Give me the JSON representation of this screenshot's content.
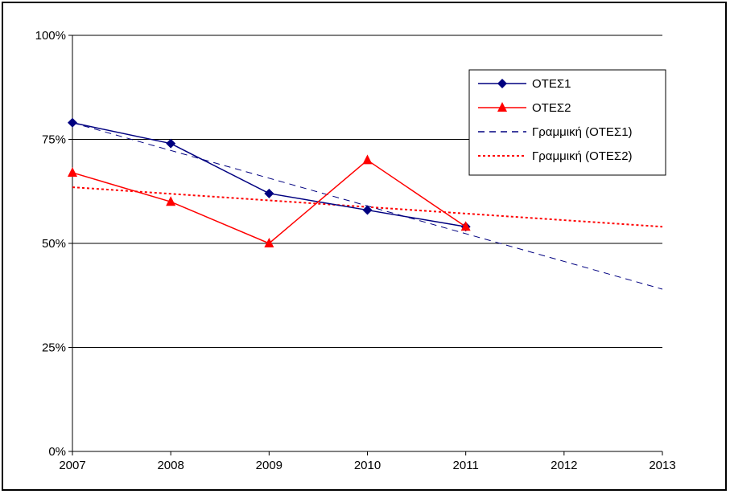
{
  "chart_data": {
    "type": "line",
    "x": [
      2007,
      2008,
      2009,
      2010,
      2011,
      2012,
      2013
    ],
    "x_tick_labels": [
      "2007",
      "2008",
      "2009",
      "2010",
      "2011",
      "2012",
      "2013"
    ],
    "ylim": [
      0,
      1
    ],
    "y_ticks": [
      0,
      0.25,
      0.5,
      0.75,
      1.0
    ],
    "y_tick_labels": [
      "0%",
      "25%",
      "50%",
      "75%",
      "100%"
    ],
    "grid": "horizontal",
    "legend_position": "upper-right",
    "series": [
      {
        "name": "ΟΤΕΣ1",
        "color": "#000080",
        "marker": "diamond",
        "style": "solid",
        "x": [
          2007,
          2008,
          2009,
          2010,
          2011
        ],
        "values": [
          0.79,
          0.74,
          0.62,
          0.58,
          0.54
        ]
      },
      {
        "name": "ΟΤΕΣ2",
        "color": "#ff0000",
        "marker": "triangle",
        "style": "solid",
        "x": [
          2007,
          2008,
          2009,
          2010,
          2011
        ],
        "values": [
          0.67,
          0.6,
          0.5,
          0.7,
          0.54
        ]
      }
    ],
    "trendlines": [
      {
        "name": "Γραμμική (ΟΤΕΣ1)",
        "color": "#000080",
        "style": "dashed",
        "x": [
          2007,
          2013
        ],
        "values": [
          0.79,
          0.39
        ]
      },
      {
        "name": "Γραμμική (ΟΤΕΣ2)",
        "color": "#ff0000",
        "style": "dotted",
        "x": [
          2007,
          2013
        ],
        "values": [
          0.635,
          0.54
        ]
      }
    ]
  }
}
